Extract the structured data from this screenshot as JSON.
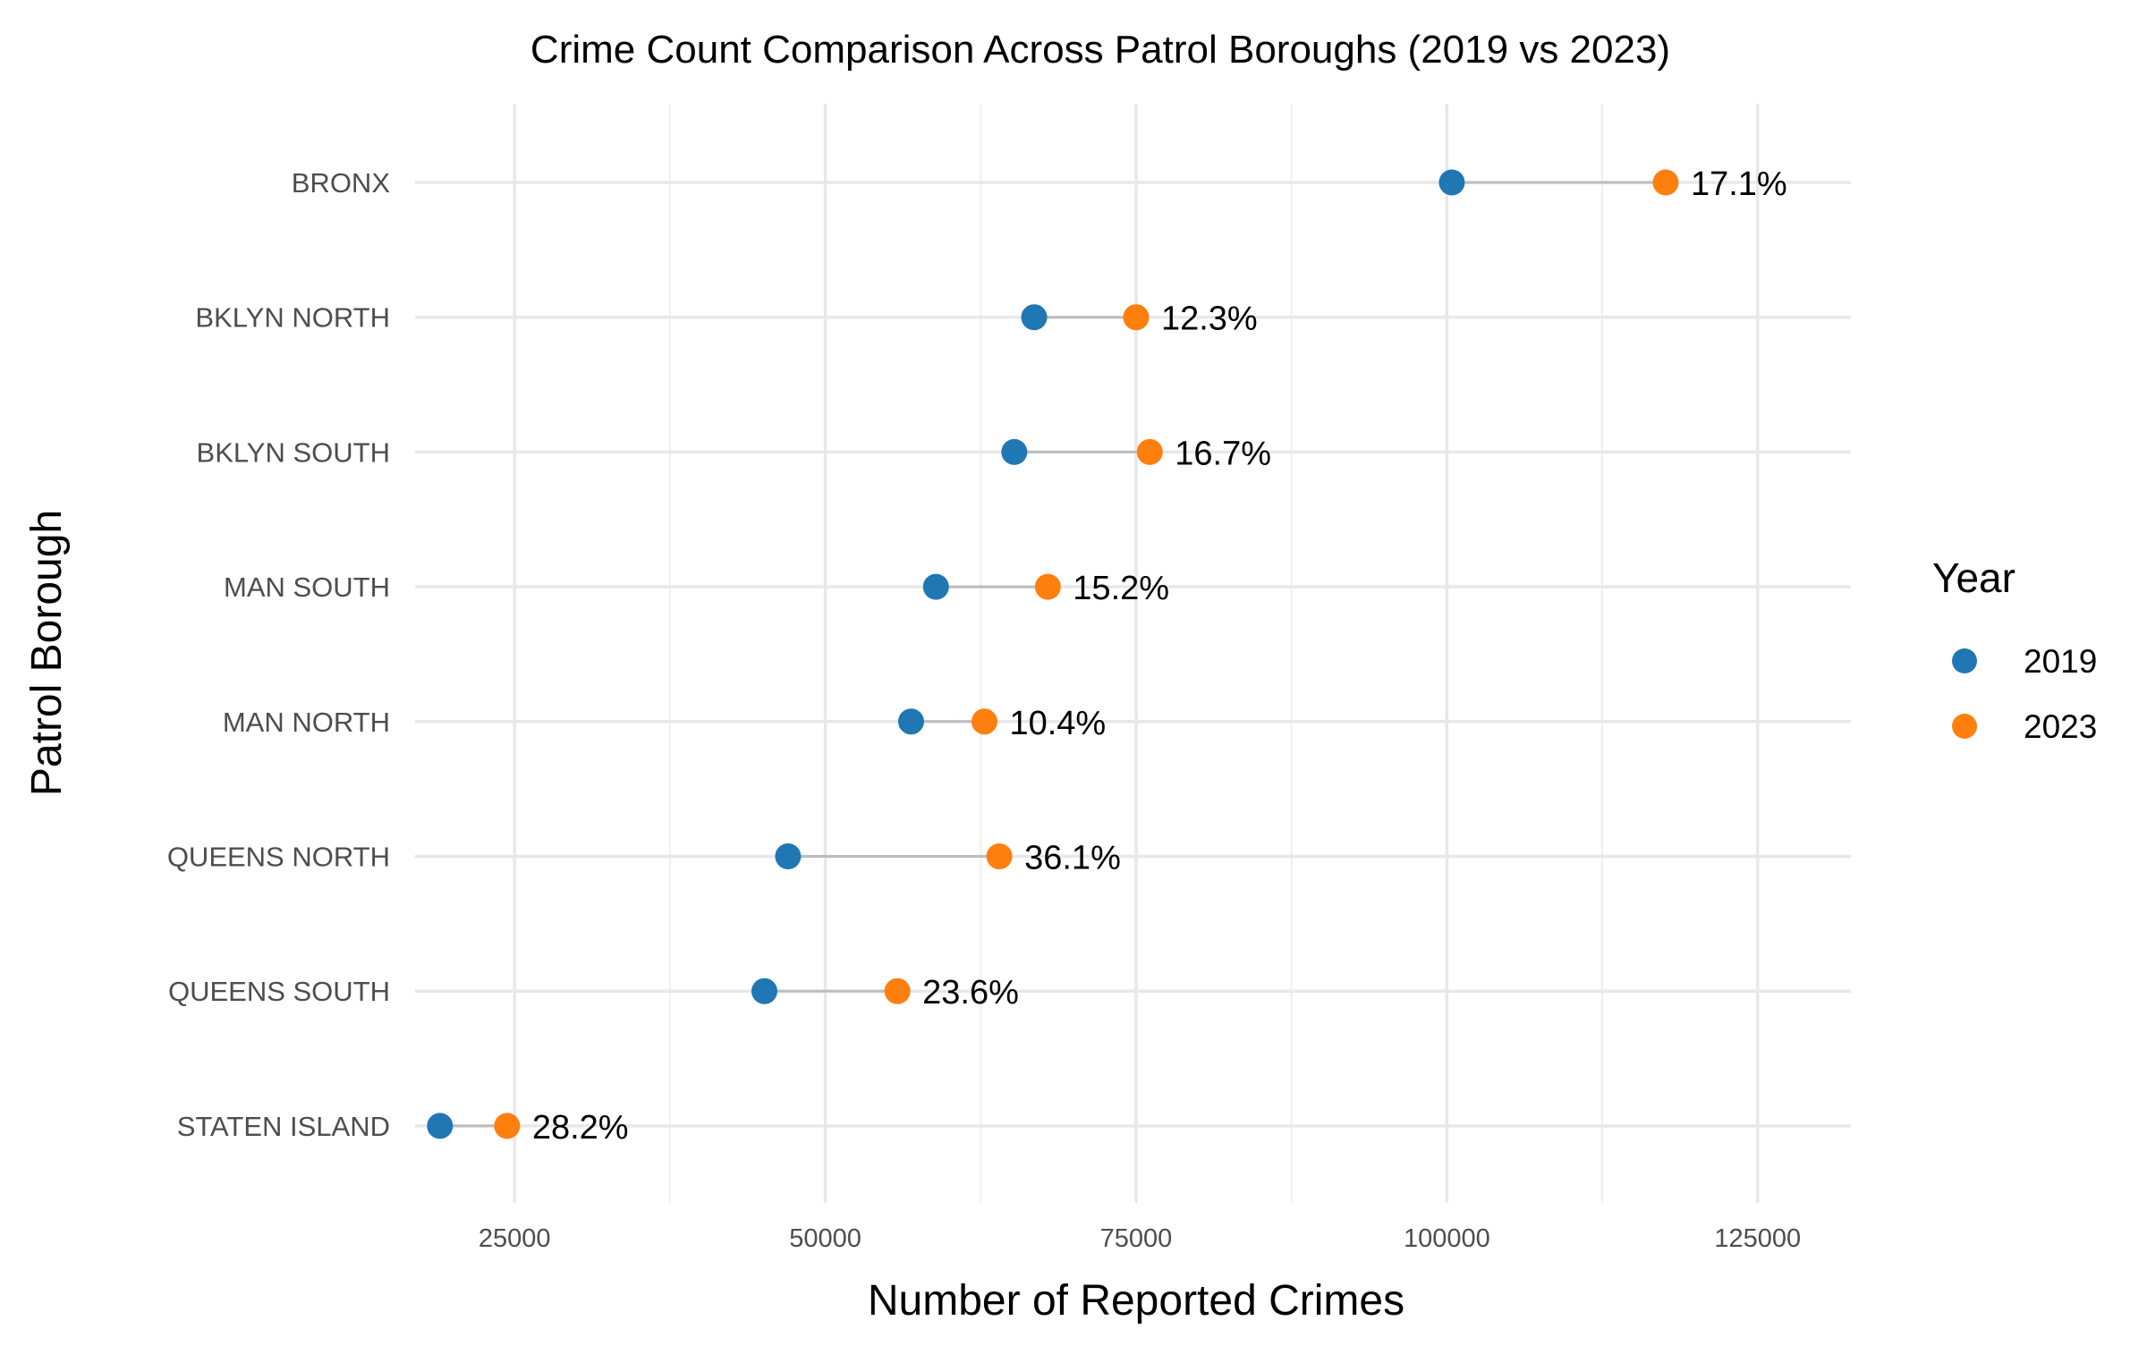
{
  "chart_data": {
    "type": "dumbbell",
    "title": "Crime Count Comparison Across Patrol Boroughs (2019 vs 2023)",
    "xlabel": "Number of Reported Crimes",
    "ylabel": "Patrol Borough",
    "xlim": [
      17000,
      132500
    ],
    "xticks": [
      25000,
      50000,
      75000,
      100000,
      125000
    ],
    "grid": true,
    "legend": {
      "title": "Year",
      "placement": "right",
      "entries": [
        "2019",
        "2023"
      ]
    },
    "colors": {
      "2019": "#1f77b4",
      "2023": "#ff7f0e",
      "segment": "#bdbdbd"
    },
    "categories": [
      "BRONX",
      "BKLYN NORTH",
      "BKLYN SOUTH",
      "MAN SOUTH",
      "MAN NORTH",
      "QUEENS NORTH",
      "QUEENS SOUTH",
      "STATEN ISLAND"
    ],
    "series": [
      {
        "name": "2019",
        "values": [
          100400,
          66800,
          65200,
          58900,
          56900,
          47000,
          45100,
          19000
        ]
      },
      {
        "name": "2023",
        "values": [
          117600,
          75000,
          76100,
          67900,
          62800,
          64000,
          55800,
          24400
        ]
      }
    ],
    "labels": [
      "17.1%",
      "12.3%",
      "16.7%",
      "15.2%",
      "10.4%",
      "36.1%",
      "23.6%",
      "28.2%"
    ]
  }
}
